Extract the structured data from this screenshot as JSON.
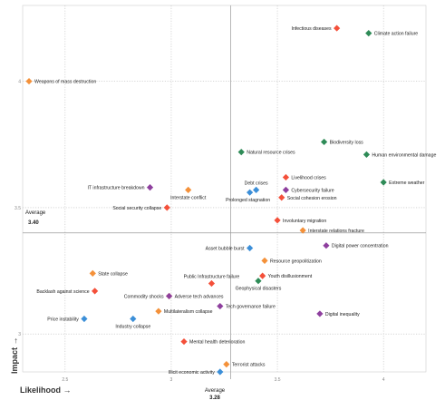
{
  "chart_data": {
    "type": "scatter",
    "xlabel": "Likelihood →",
    "ylabel": "Impact →",
    "xlim": [
      2.3,
      4.2
    ],
    "ylim": [
      2.85,
      4.3
    ],
    "x_ticks": [
      2.5,
      3,
      3.5,
      4
    ],
    "y_ticks": [
      3,
      3.5,
      4
    ],
    "grid": true,
    "average_x": {
      "label": "Average",
      "value": "3.28",
      "x": 3.28
    },
    "average_y": {
      "label": "Average",
      "value": "3.40",
      "y": 3.4
    },
    "category_colors": {
      "economic": "#f4913a",
      "environmental": "#2e8b57",
      "geopolitical": "#f45a3c",
      "societal": "#f4503a",
      "technological": "#8e3f9e",
      "accent_blue": "#3c8fd8"
    },
    "points": [
      {
        "label": "Infectious diseases",
        "x": 3.78,
        "y": 4.21,
        "color": "#f4503a"
      },
      {
        "label": "Climate action failure",
        "x": 3.93,
        "y": 4.19,
        "color": "#2e8b57"
      },
      {
        "label": "Weapons of mass destruction",
        "x": 2.33,
        "y": 4.0,
        "color": "#f4913a"
      },
      {
        "label": "Biodiversity loss",
        "x": 3.72,
        "y": 3.76,
        "color": "#2e8b57"
      },
      {
        "label": "Natural resource crises",
        "x": 3.33,
        "y": 3.72,
        "color": "#2e8b57"
      },
      {
        "label": "Human environmental damage",
        "x": 3.92,
        "y": 3.71,
        "color": "#2e8b57"
      },
      {
        "label": "Livelihood crises",
        "x": 3.54,
        "y": 3.62,
        "color": "#f4503a"
      },
      {
        "label": "Extreme weather",
        "x": 4.0,
        "y": 3.6,
        "color": "#2e8b57"
      },
      {
        "label": "Debt crises",
        "x": 3.4,
        "y": 3.57,
        "color": "#3c8fd8"
      },
      {
        "label": "IT infrastructure breakdown",
        "x": 2.9,
        "y": 3.58,
        "color": "#8e3f9e"
      },
      {
        "label": "Interstate conflict",
        "x": 3.08,
        "y": 3.57,
        "color": "#f4913a"
      },
      {
        "label": "Cybersecurity failure",
        "x": 3.54,
        "y": 3.57,
        "color": "#8e3f9e"
      },
      {
        "label": "Prolonged stagnation",
        "x": 3.37,
        "y": 3.56,
        "color": "#3c8fd8"
      },
      {
        "label": "Social cohesion erosion",
        "x": 3.52,
        "y": 3.54,
        "color": "#f4503a"
      },
      {
        "label": "Social security collapse",
        "x": 2.98,
        "y": 3.5,
        "color": "#f4503a"
      },
      {
        "label": "Involuntary migration",
        "x": 3.5,
        "y": 3.45,
        "color": "#f4503a"
      },
      {
        "label": "Interstate relations fracture",
        "x": 3.62,
        "y": 3.41,
        "color": "#f4913a"
      },
      {
        "label": "Digital power concentration",
        "x": 3.73,
        "y": 3.35,
        "color": "#8e3f9e"
      },
      {
        "label": "Asset bubble burst",
        "x": 3.37,
        "y": 3.34,
        "color": "#3c8fd8"
      },
      {
        "label": "Resource geopolitization",
        "x": 3.44,
        "y": 3.29,
        "color": "#f4913a"
      },
      {
        "label": "State collapse",
        "x": 2.63,
        "y": 3.24,
        "color": "#f4913a"
      },
      {
        "label": "Public Infrastructure failure",
        "x": 3.19,
        "y": 3.2,
        "color": "#f4503a"
      },
      {
        "label": "Youth disillusionment",
        "x": 3.43,
        "y": 3.23,
        "color": "#f4503a"
      },
      {
        "label": "Geophysical disasters",
        "x": 3.41,
        "y": 3.21,
        "color": "#2e8b57"
      },
      {
        "label": "Backlash against science",
        "x": 2.64,
        "y": 3.17,
        "color": "#f4503a"
      },
      {
        "label": "Commodity shocks",
        "x": 2.99,
        "y": 3.15,
        "color": "#f4913a"
      },
      {
        "label": "Adverse tech advances",
        "x": 2.99,
        "y": 3.15,
        "color": "#8e3f9e"
      },
      {
        "label": "Tech governance failure",
        "x": 3.23,
        "y": 3.11,
        "color": "#8e3f9e"
      },
      {
        "label": "Price instability",
        "x": 2.59,
        "y": 3.06,
        "color": "#3c8fd8"
      },
      {
        "label": "Industry collapse",
        "x": 2.82,
        "y": 3.06,
        "color": "#3c8fd8"
      },
      {
        "label": "Multilateralism collapse",
        "x": 2.94,
        "y": 3.09,
        "color": "#f4913a"
      },
      {
        "label": "Digital inequality",
        "x": 3.7,
        "y": 3.08,
        "color": "#8e3f9e"
      },
      {
        "label": "Mental health deterioration",
        "x": 3.06,
        "y": 2.97,
        "color": "#f4503a"
      },
      {
        "label": "Terrorist attacks",
        "x": 3.26,
        "y": 2.88,
        "color": "#f4913a"
      },
      {
        "label": "Illicit economic activity",
        "x": 3.23,
        "y": 2.85,
        "color": "#3c8fd8"
      }
    ]
  }
}
